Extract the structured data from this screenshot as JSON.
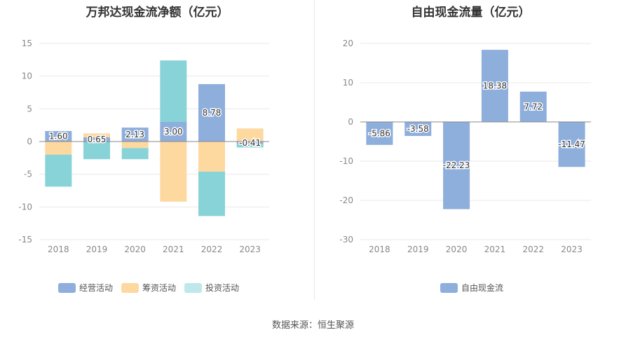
{
  "colors": {
    "operating": "#8eaedc",
    "financing": "#fdd9a0",
    "investing": "#87d3d8"
  },
  "source": "数据来源：恒生聚源",
  "chart_data": [
    {
      "type": "bar",
      "stacked": true,
      "title": "万邦达现金流净额（亿元）",
      "categories": [
        "2018",
        "2019",
        "2020",
        "2021",
        "2022",
        "2023"
      ],
      "series": [
        {
          "name": "经营活动",
          "values": [
            1.6,
            0.65,
            2.13,
            3.0,
            8.78,
            -0.41
          ],
          "show_labels": true
        },
        {
          "name": "筹资活动",
          "values": [
            -2.0,
            0.6,
            -1.0,
            -9.2,
            -4.6,
            2.0
          ]
        },
        {
          "name": "投资活动",
          "values": [
            -4.9,
            -2.7,
            -1.7,
            9.4,
            -6.8,
            -0.5
          ]
        }
      ],
      "data_labels": [
        "1.60",
        "0.65",
        "2.13",
        "3.00",
        "8.78",
        "-0.41"
      ],
      "ylim": [
        -15,
        15
      ],
      "yticks": [
        15,
        10,
        5,
        0,
        -5,
        -10,
        -15
      ],
      "legend": "bottom",
      "grid": true
    },
    {
      "type": "bar",
      "title": "自由现金流量（亿元）",
      "categories": [
        "2018",
        "2019",
        "2020",
        "2021",
        "2022",
        "2023"
      ],
      "series": [
        {
          "name": "自由现金流",
          "values": [
            -5.86,
            -3.58,
            -22.23,
            18.38,
            7.72,
            -11.47
          ]
        }
      ],
      "data_labels": [
        "-5.86",
        "-3.58",
        "-22.23",
        "18.38",
        "7.72",
        "-11.47"
      ],
      "ylim": [
        -30,
        20
      ],
      "yticks": [
        20,
        10,
        0,
        -10,
        -20,
        -30
      ],
      "legend": "bottom",
      "grid": true
    }
  ]
}
